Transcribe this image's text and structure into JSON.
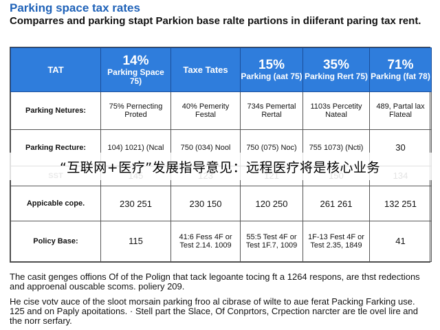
{
  "title": "Parking space tax rates",
  "subtitle": "Comparres and parking stapt Parkion base ralte partions in diiferant paring tax rent.",
  "table": {
    "headers": [
      {
        "pct": "",
        "label": "TAT"
      },
      {
        "pct": "14%",
        "label": "Parking Space 75)"
      },
      {
        "pct": "",
        "label": "Taxe Tates"
      },
      {
        "pct": "15%",
        "label": "Parking (aat 75)"
      },
      {
        "pct": "35%",
        "label": "Parking Rert 75)"
      },
      {
        "pct": "71%",
        "label": "Parking (fat 78)"
      }
    ],
    "rows": [
      {
        "label": "Parking Netures:",
        "cells": [
          "75% Pernecting Proted",
          "40% Pemerity Festal",
          "734s Pemertal Rertal",
          "1103s Percetity Nateal",
          "489, Partal lax Flateal"
        ]
      },
      {
        "label": "Parking Recture:",
        "cells": [
          "104) 1021) (Ncal",
          "750 (034) Nool",
          "750 (075) Noc)",
          "755 1073) (Ncti)",
          "30"
        ]
      },
      {
        "label": "SST",
        "cells": [
          "145",
          "123",
          "121",
          "150",
          "134"
        ]
      },
      {
        "label": "Appicable cope.",
        "cells": [
          "230 251",
          "230 150",
          "120 250",
          "261 261",
          "132 251"
        ]
      },
      {
        "label": "Policy Base:",
        "cells": [
          "115",
          "41:6 Fess 4F or Test 2.14. 1009",
          "55:5 Test 4F or Test 1F.7, 1009",
          "1F-13 Fest 4F or Test 2.35, 1849",
          "41"
        ]
      }
    ]
  },
  "banner": "“互联网+医疗”发展指导意见：远程医疗将是核心业务",
  "notes": [
    "The casit genges offions Of of the Polign that tack legoante tocing ft a 1264 respons, are thst redections and approenal ouscable scoms. poliery 209.",
    "He cise votv auce of the sloot morsain parking froo al cibrase of wilte to aue ferat Packing Farking use. 125 and on Paply apoitations. · Stell part the Slace, Of Conprtors, Crpection narcter are tle ovel lire and the norr serfary."
  ]
}
